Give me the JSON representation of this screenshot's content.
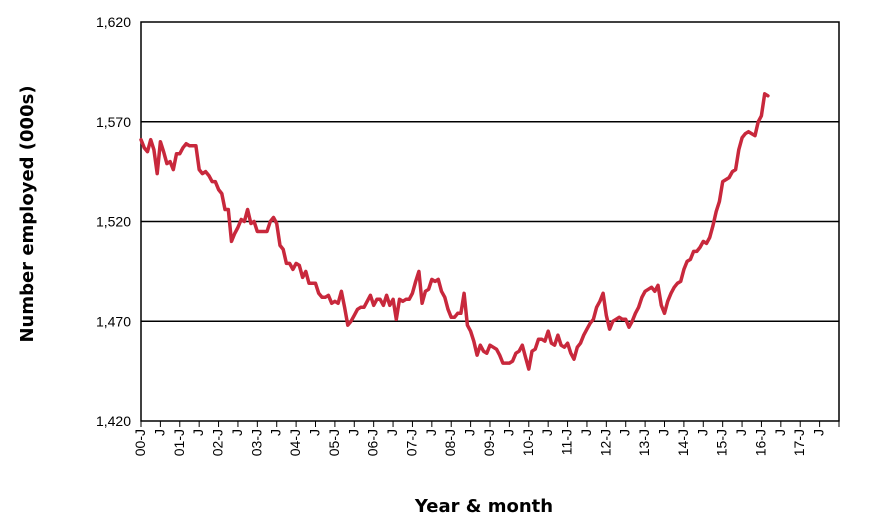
{
  "chart_data": {
    "type": "line",
    "title": "",
    "xlabel": "Year & month",
    "ylabel": "Number employed (000s)",
    "ylim": [
      1420,
      1620
    ],
    "y_ticks": [
      "1,420",
      "1,470",
      "1,520",
      "1,570",
      "1,620"
    ],
    "y_tick_values": [
      1420,
      1470,
      1520,
      1570,
      1620
    ],
    "x_tick_labels": [
      "00-J",
      "J",
      "01-J",
      "J",
      "02-J",
      "J",
      "03-J",
      "J",
      "04-J",
      "J",
      "05-J",
      "J",
      "06-J",
      "J",
      "07-J",
      "J",
      "08-J",
      "J",
      "09-J",
      "J",
      "10-J",
      "J",
      "11-J",
      "J",
      "12-J",
      "J",
      "13-J",
      "J",
      "14-J",
      "J",
      "15-J",
      "J",
      "16-J",
      "J",
      "17-J",
      "J"
    ],
    "grid": "horizontal",
    "legend": "none",
    "series_color": "#c8283c",
    "series": [
      {
        "name": "",
        "values": [
          1561,
          1557,
          1555,
          1561,
          1556,
          1544,
          1560,
          1555,
          1549,
          1550,
          1546,
          1554,
          1554,
          1557,
          1559,
          1558,
          1558,
          1558,
          1546,
          1544,
          1545,
          1543,
          1540,
          1540,
          1536,
          1534,
          1526,
          1526,
          1510,
          1514,
          1517,
          1521,
          1520,
          1526,
          1519,
          1520,
          1515,
          1515,
          1515,
          1515,
          1520,
          1522,
          1519,
          1508,
          1506,
          1499,
          1499,
          1496,
          1499,
          1498,
          1492,
          1495,
          1489,
          1489,
          1489,
          1484,
          1482,
          1482,
          1483,
          1479,
          1480,
          1479,
          1485,
          1477,
          1468,
          1470,
          1473,
          1476,
          1477,
          1477,
          1480,
          1483,
          1478,
          1481,
          1481,
          1478,
          1483,
          1478,
          1481,
          1471,
          1481,
          1480,
          1481,
          1481,
          1484,
          1490,
          1495,
          1479,
          1485,
          1486,
          1491,
          1490,
          1491,
          1485,
          1482,
          1476,
          1472,
          1472,
          1474,
          1474,
          1484,
          1468,
          1465,
          1460,
          1453,
          1458,
          1455,
          1454,
          1458,
          1457,
          1456,
          1453,
          1449,
          1449,
          1449,
          1450,
          1454,
          1455,
          1458,
          1452,
          1446,
          1455,
          1456,
          1461,
          1461,
          1460,
          1465,
          1459,
          1458,
          1463,
          1458,
          1457,
          1459,
          1454,
          1451,
          1457,
          1459,
          1463,
          1466,
          1469,
          1471,
          1477,
          1480,
          1484,
          1473,
          1466,
          1470,
          1471,
          1472,
          1471,
          1471,
          1467,
          1470,
          1474,
          1477,
          1482,
          1485,
          1486,
          1487,
          1485,
          1488,
          1478,
          1474,
          1480,
          1484,
          1487,
          1489,
          1490,
          1496,
          1500,
          1501,
          1505,
          1505,
          1507,
          1510,
          1509,
          1512,
          1518,
          1525,
          1530,
          1540,
          1541,
          1542,
          1545,
          1546,
          1556,
          1562,
          1564,
          1565,
          1564,
          1563,
          1570,
          1573,
          1584,
          1583
        ]
      }
    ]
  }
}
